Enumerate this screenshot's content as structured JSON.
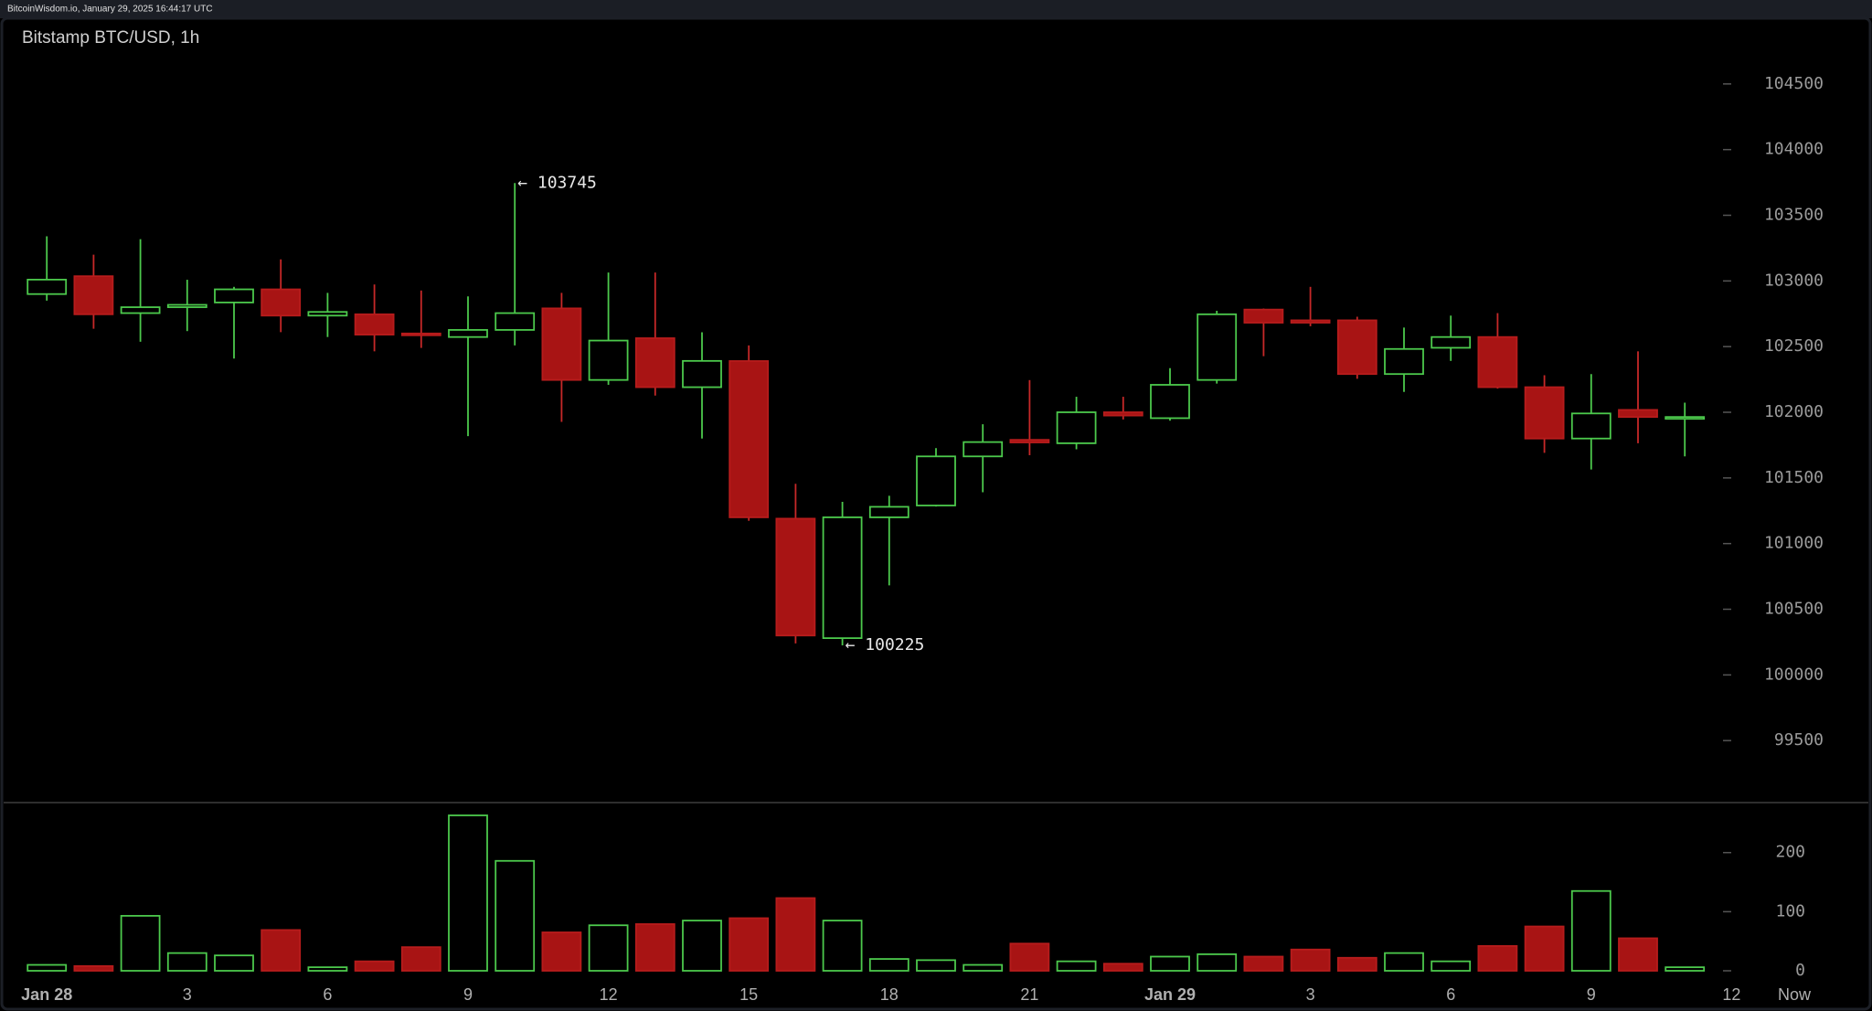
{
  "chart_data": {
    "type": "candlestick",
    "source": "BitcoinWisdom.io, January 29, 2025 16:44:17 UTC",
    "title": "Bitstamp BTC/USD, 1h",
    "x": [
      0,
      1,
      2,
      3,
      4,
      5,
      6,
      7,
      8,
      9,
      10,
      11,
      12,
      13,
      14,
      15,
      16,
      17,
      18,
      19,
      20,
      21,
      22,
      23,
      24,
      25,
      26,
      27,
      28,
      29,
      30,
      31,
      32,
      33,
      34,
      35
    ],
    "open": [
      102900,
      103036,
      102755,
      102800,
      102836,
      102936,
      102736,
      102746,
      102600,
      102573,
      102627,
      102791,
      102246,
      102564,
      102191,
      102390,
      101190,
      100280,
      101200,
      101290,
      101664,
      101790,
      101764,
      102000,
      101955,
      102246,
      102782,
      102700,
      102700,
      102291,
      102491,
      102573,
      102191,
      101800,
      102018,
      101955
    ],
    "high": [
      103340,
      103200,
      103318,
      103009,
      102955,
      103164,
      102909,
      102973,
      102927,
      102882,
      103745,
      102909,
      103064,
      103064,
      102609,
      102509,
      101455,
      101318,
      101364,
      101727,
      101909,
      102245,
      102118,
      102118,
      102336,
      102773,
      102790,
      102955,
      102727,
      102645,
      102736,
      102755,
      102282,
      102291,
      102464,
      102073
    ],
    "low": [
      102850,
      102636,
      102537,
      102618,
      102409,
      102610,
      102573,
      102464,
      102490,
      101818,
      102509,
      101927,
      102209,
      102127,
      101800,
      101173,
      100240,
      100225,
      100682,
      101282,
      101391,
      101673,
      101718,
      101945,
      101936,
      102218,
      102427,
      102655,
      102255,
      102155,
      102391,
      102180,
      101691,
      101564,
      101764,
      101664
    ],
    "close": [
      103010,
      102746,
      102800,
      102818,
      102936,
      102736,
      102764,
      102591,
      102590,
      102627,
      102755,
      102246,
      102546,
      102191,
      102391,
      101200,
      100300,
      101200,
      101280,
      101664,
      101773,
      101770,
      102000,
      101975,
      102209,
      102746,
      102682,
      102682,
      102291,
      102482,
      102573,
      102191,
      101800,
      101991,
      101964,
      101964
    ],
    "volume": [
      10,
      8,
      93,
      30,
      26,
      69,
      6,
      16,
      40,
      263,
      186,
      65,
      77,
      79,
      85,
      89,
      123,
      85,
      20,
      18,
      10,
      46,
      16,
      12,
      24,
      28,
      24,
      36,
      22,
      30,
      16,
      42,
      75,
      135,
      55,
      6
    ],
    "up_color": "#4cc94c",
    "down_color": "#a81414",
    "xlim": [
      -1,
      39
    ],
    "xticks": [
      {
        "value": 0,
        "label": "Jan 28"
      },
      3,
      6,
      9,
      12,
      15,
      18,
      21,
      {
        "value": 24,
        "label": "Jan 29"
      },
      {
        "value": 27,
        "label": "3"
      },
      {
        "value": 30,
        "label": "6"
      },
      {
        "value": 33,
        "label": "9"
      },
      {
        "value": 36,
        "label": "12"
      }
    ],
    "now_label": "Now",
    "ylim": [
      99000,
      105000
    ],
    "yticks": [
      99500,
      100000,
      100500,
      101000,
      101500,
      102000,
      102500,
      103000,
      103500,
      104000,
      104500
    ],
    "volume_ylim": [
      0,
      280
    ],
    "volume_yticks": [
      0,
      100,
      200
    ],
    "annotations": [
      {
        "x": 10,
        "value": 103745,
        "label": "← 103745"
      },
      {
        "x": 17,
        "value": 100225,
        "label": "← 100225"
      }
    ]
  }
}
